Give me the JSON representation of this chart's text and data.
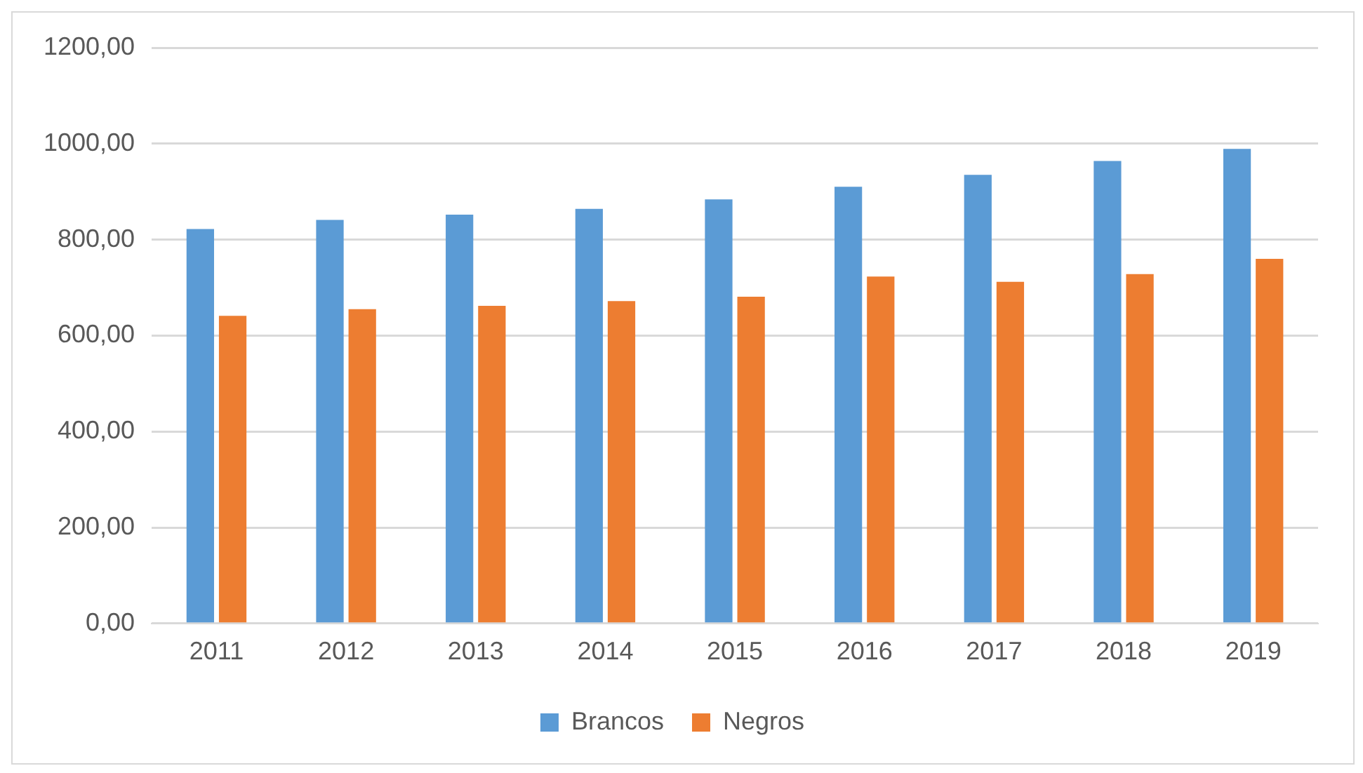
{
  "chart_data": {
    "type": "bar",
    "categories": [
      "2011",
      "2012",
      "2013",
      "2014",
      "2015",
      "2016",
      "2017",
      "2018",
      "2019"
    ],
    "series": [
      {
        "name": "Brancos",
        "color": "#5b9bd5",
        "values": [
          822,
          841,
          852,
          864,
          884,
          910,
          935,
          964,
          989
        ]
      },
      {
        "name": "Negros",
        "color": "#ed7d31",
        "values": [
          641,
          655,
          662,
          672,
          681,
          723,
          712,
          728,
          760
        ]
      }
    ],
    "ylim": [
      0,
      1200
    ],
    "yticks": [
      {
        "value": 0,
        "label": "0,00"
      },
      {
        "value": 200,
        "label": "200,00"
      },
      {
        "value": 400,
        "label": "400,00"
      },
      {
        "value": 600,
        "label": "600,00"
      },
      {
        "value": 800,
        "label": "800,00"
      },
      {
        "value": 1000,
        "label": "1000,00"
      },
      {
        "value": 1200,
        "label": "1200,00"
      }
    ],
    "grid": "y",
    "legend": "bottom"
  }
}
